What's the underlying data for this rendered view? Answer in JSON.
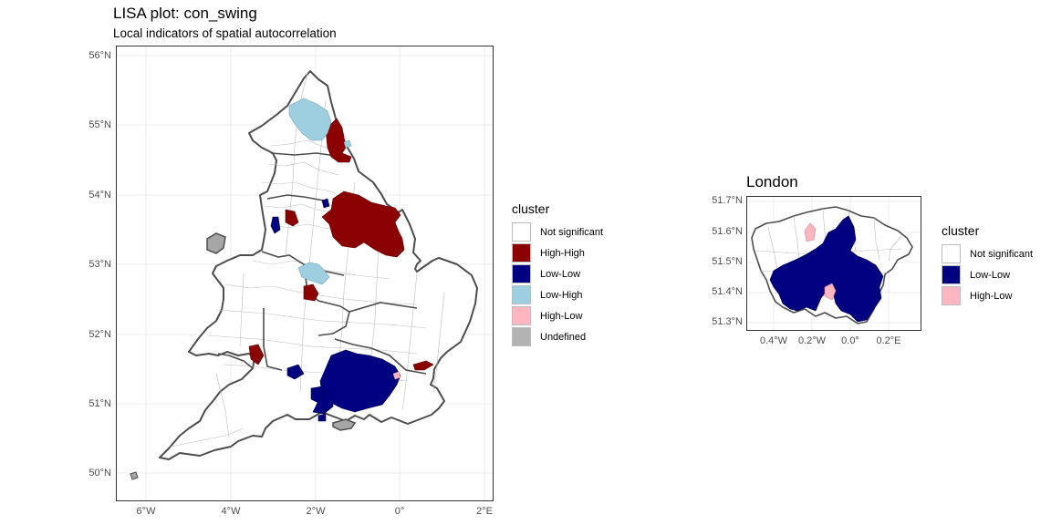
{
  "main_map": {
    "title": "LISA plot: con_swing",
    "subtitle": "Local indicators of spatial autocorrelation",
    "lat_ticks": [
      "56°N",
      "55°N",
      "54°N",
      "53°N",
      "52°N",
      "51°N",
      "50°N"
    ],
    "lon_ticks": [
      "6°W",
      "4°W",
      "2°W",
      "0°",
      "2°E"
    ],
    "legend": {
      "title": "cluster",
      "items": [
        {
          "label": "Not significant",
          "color": "#ffffff"
        },
        {
          "label": "High-High",
          "color": "#8b0000"
        },
        {
          "label": "Low-Low",
          "color": "#000080"
        },
        {
          "label": "Low-High",
          "color": "#9ecfe1"
        },
        {
          "label": "High-Low",
          "color": "#ffb6c1"
        },
        {
          "label": "Undefined",
          "color": "#b3b3b3"
        }
      ]
    }
  },
  "london_map": {
    "title": "London",
    "lat_ticks": [
      "51.7°N",
      "51.6°N",
      "51.5°N",
      "51.4°N",
      "51.3°N"
    ],
    "lon_ticks": [
      "0.4°W",
      "0.2°W",
      "0.0°",
      "0.2°E"
    ],
    "legend": {
      "title": "cluster",
      "items": [
        {
          "label": "Not significant",
          "color": "#ffffff"
        },
        {
          "label": "Low-Low",
          "color": "#000080"
        },
        {
          "label": "High-Low",
          "color": "#ffb6c1"
        }
      ]
    }
  }
}
